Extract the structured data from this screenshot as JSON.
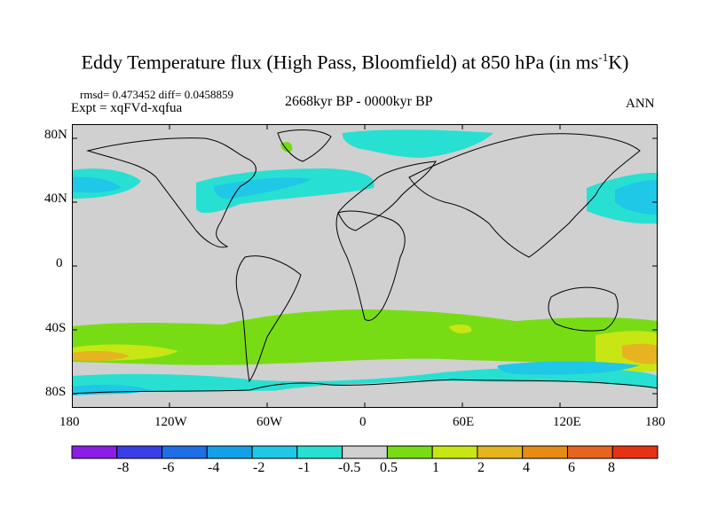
{
  "header": {
    "title_main": "Eddy Temperature flux (High Pass, Bloomfield) at 850 hPa (in ms",
    "title_sup": "-1",
    "title_end": "K)",
    "stats": "rmsd= 0.473452 diff= 0.0458859",
    "experiment": "Expt = xqFVd-xqfua",
    "period": "2668kyr BP - 0000kyr BP",
    "season": "ANN"
  },
  "map": {
    "background_color": "#d0d0d0",
    "lat_labels": [
      "80N",
      "40N",
      "0",
      "40S",
      "80S"
    ],
    "lon_labels": [
      "180",
      "120W",
      "60W",
      "0",
      "60E",
      "120E",
      "180"
    ]
  },
  "colorbar": {
    "levels": [
      "-8",
      "-6",
      "-4",
      "-2",
      "-1",
      "-0.5",
      "0.5",
      "1",
      "2",
      "4",
      "6",
      "8"
    ],
    "colors": [
      "#8b1ee6",
      "#3a3ee6",
      "#1e6ee6",
      "#14a0e6",
      "#1ec8e6",
      "#28e0d2",
      "#d0d0d0",
      "#78dc14",
      "#c8e614",
      "#e6b41e",
      "#e68c14",
      "#e6641e",
      "#e63214"
    ]
  }
}
